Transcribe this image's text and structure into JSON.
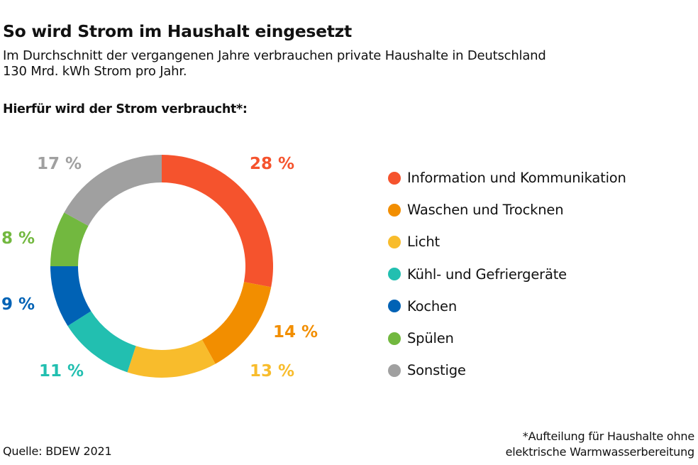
{
  "header": {
    "title": "So wird Strom im Haushalt eingesetzt",
    "subtitle_lines": [
      "Im Durchschnitt der vergangenen Jahre verbrauchen private Haushalte in Deutschland",
      "130 Mrd. kWh Strom pro Jahr."
    ],
    "section_heading": "Hierfür wird der Strom verbraucht*:"
  },
  "chart_data": {
    "type": "pie",
    "variant": "donut",
    "title": "Hierfür wird der Strom verbraucht*:",
    "start": "top",
    "direction": "clockwise",
    "unit": "%",
    "legend_position": "right",
    "categories": [
      "Information und Kommunikation",
      "Waschen und Trocknen",
      "Licht",
      "Kühl- und Gefriergeräte",
      "Kochen",
      "Spülen",
      "Sonstige"
    ],
    "values": [
      28,
      14,
      13,
      11,
      9,
      8,
      17
    ],
    "labels": [
      "28 %",
      "14 %",
      "13 %",
      "11 %",
      "9 %",
      "8 %",
      "17 %"
    ],
    "colors": [
      "#f5532d",
      "#f28e00",
      "#f8bc2c",
      "#22bfb0",
      "#0062b5",
      "#72b83f",
      "#a0a0a0"
    ]
  },
  "footer": {
    "source": "Quelle: BDEW 2021",
    "footnote_lines": [
      "*Aufteilung für Haushalte ohne",
      "elektrische Warmwasserbereitung"
    ]
  }
}
